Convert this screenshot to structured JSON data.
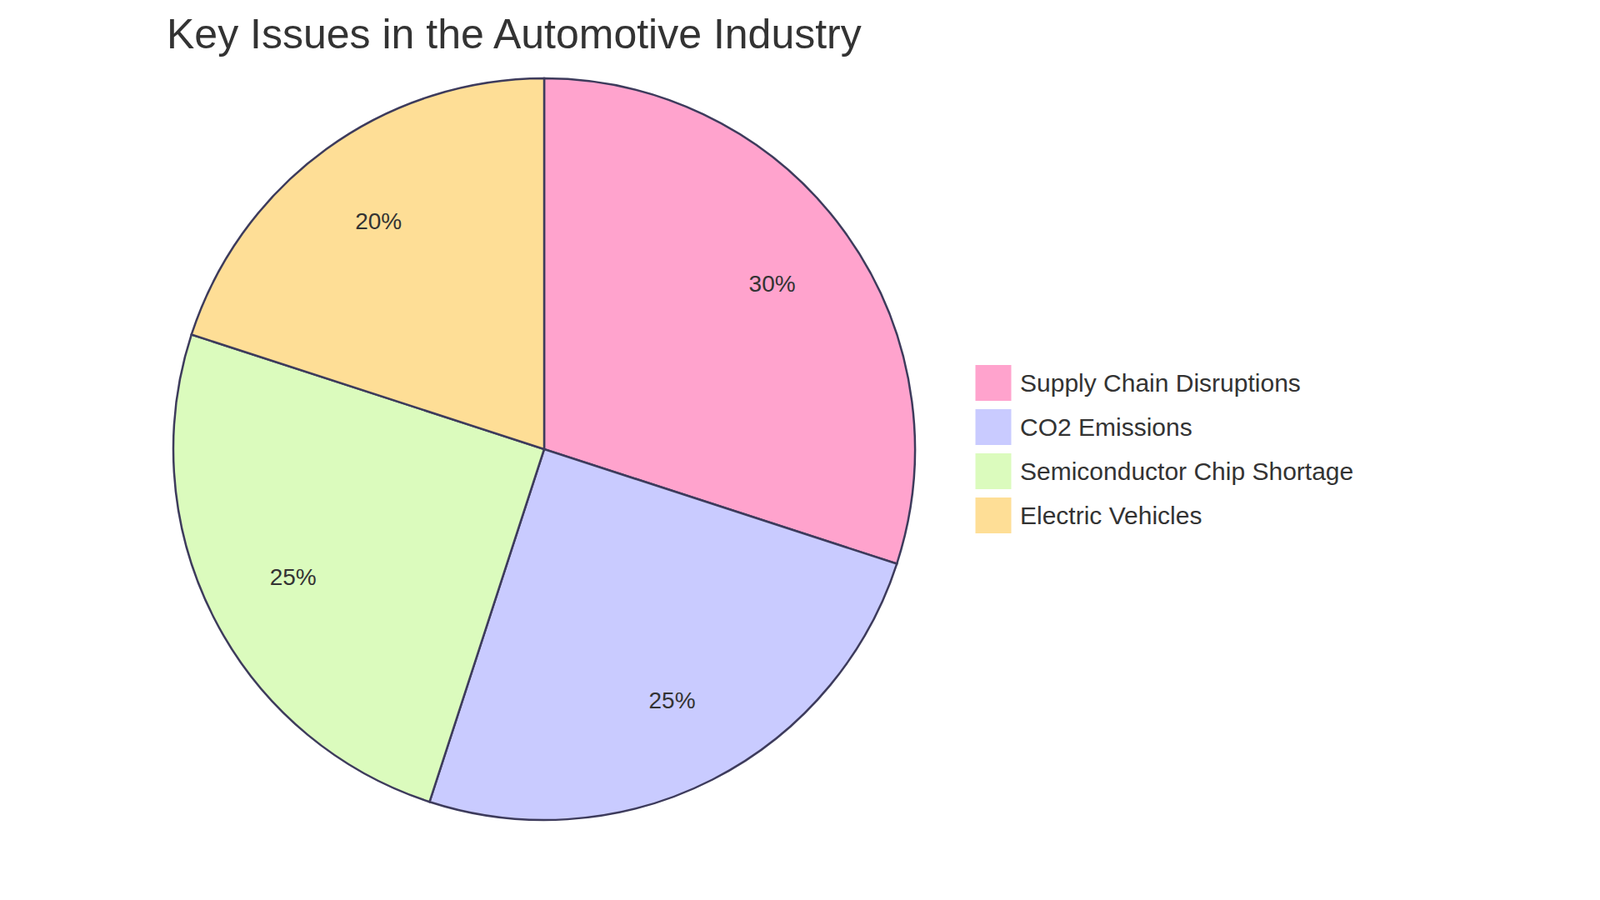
{
  "chart_data": {
    "type": "pie",
    "title": "Key Issues in the Automotive Industry",
    "categories": [
      "Supply Chain Disruptions",
      "CO2 Emissions",
      "Semiconductor Chip Shortage",
      "Electric Vehicles"
    ],
    "values": [
      30,
      25,
      25,
      20
    ],
    "value_labels": [
      "30%",
      "25%",
      "25%",
      "20%"
    ],
    "colors": [
      "#ffa3cd",
      "#c9cbff",
      "#dbfbbd",
      "#fede96"
    ],
    "data_labels": true,
    "legend": "right"
  }
}
